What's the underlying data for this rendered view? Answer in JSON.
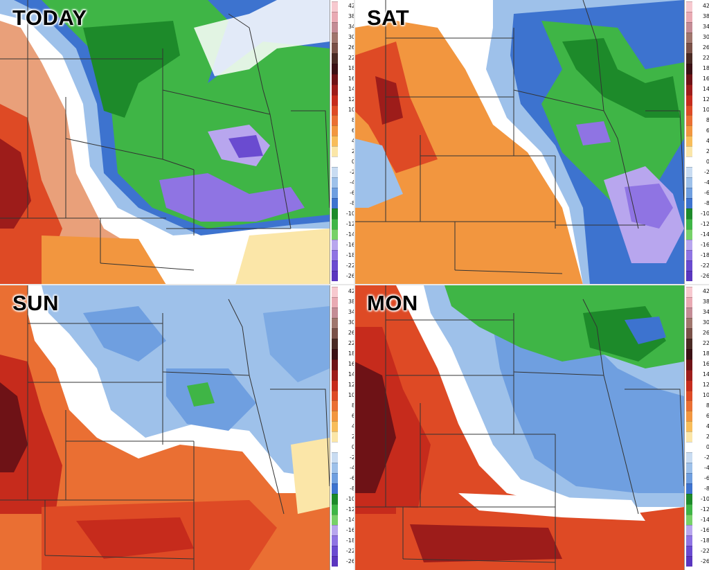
{
  "panels": [
    {
      "title": "TODAY"
    },
    {
      "title": "SAT"
    },
    {
      "title": "SUN"
    },
    {
      "title": "MON"
    }
  ],
  "legend": {
    "ticks": [
      "42",
      "38",
      "34",
      "30",
      "26",
      "22",
      "18",
      "16",
      "14",
      "12",
      "10",
      "8",
      "6",
      "4",
      "2",
      "0",
      "-2",
      "-4",
      "-6",
      "-8",
      "-10",
      "-12",
      "-14",
      "-16",
      "-18",
      "-22",
      "-26"
    ],
    "colors": [
      "#f7c9cf",
      "#e9aab3",
      "#c48c95",
      "#a0766d",
      "#7a5148",
      "#4a2a24",
      "#3b1014",
      "#6e1216",
      "#9d1c1a",
      "#c62b1c",
      "#de4a25",
      "#ea6f33",
      "#f2963f",
      "#f8bd5a",
      "#fbe6a8",
      "#ffffff",
      "#c9dcf2",
      "#9ec1ea",
      "#6f9fe0",
      "#3d73cf",
      "#1d8a2a",
      "#3fb546",
      "#77d168",
      "#b8a6ee",
      "#8f74e3",
      "#6a4bd0",
      "#5a36bf"
    ]
  }
}
